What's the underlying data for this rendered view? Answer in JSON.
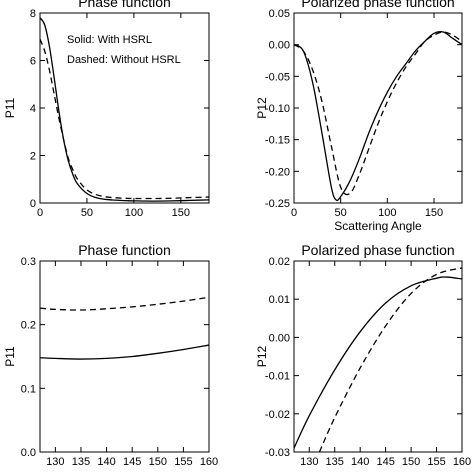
{
  "chart_data": [
    {
      "type": "line",
      "title": "Phase function",
      "xlabel": "",
      "ylabel": "P11",
      "xlim": [
        0,
        180
      ],
      "ylim": [
        0,
        8
      ],
      "xticks": [
        0,
        50,
        100,
        150
      ],
      "yticks": [
        0,
        2,
        4,
        6,
        8
      ],
      "legend": [
        "Solid: With HSRL",
        "Dashed: Without HSRL"
      ],
      "series": [
        {
          "name": "With HSRL",
          "style": "solid",
          "x": [
            0,
            5,
            10,
            15,
            20,
            25,
            30,
            35,
            40,
            50,
            60,
            70,
            80,
            90,
            100,
            120,
            140,
            160,
            180
          ],
          "y": [
            7.8,
            7.5,
            6.6,
            5.3,
            3.9,
            2.7,
            1.8,
            1.2,
            0.8,
            0.4,
            0.22,
            0.15,
            0.12,
            0.1,
            0.09,
            0.08,
            0.09,
            0.11,
            0.13
          ]
        },
        {
          "name": "Without HSRL",
          "style": "dashed",
          "x": [
            0,
            5,
            10,
            15,
            20,
            25,
            30,
            35,
            40,
            50,
            60,
            70,
            80,
            90,
            100,
            120,
            140,
            160,
            180
          ],
          "y": [
            6.9,
            6.4,
            5.6,
            4.6,
            3.6,
            2.7,
            1.9,
            1.4,
            1.0,
            0.55,
            0.35,
            0.26,
            0.22,
            0.2,
            0.19,
            0.19,
            0.2,
            0.23,
            0.25
          ]
        }
      ]
    },
    {
      "type": "line",
      "title": "Polarized phase function",
      "xlabel": "Scattering Angle",
      "ylabel": "P12",
      "xlim": [
        0,
        180
      ],
      "ylim": [
        -0.25,
        0.05
      ],
      "xticks": [
        0,
        50,
        100,
        150
      ],
      "yticks": [
        0.05,
        0.0,
        -0.05,
        -0.1,
        -0.15,
        -0.2,
        -0.25
      ],
      "ytick_labels": [
        "0.05",
        "0.00",
        "-0.05",
        "-0.10",
        "-0.15",
        "-0.20",
        "-0.25"
      ],
      "series": [
        {
          "name": "With HSRL",
          "style": "solid",
          "x": [
            0,
            10,
            20,
            30,
            40,
            45,
            50,
            60,
            70,
            80,
            90,
            100,
            110,
            120,
            130,
            140,
            150,
            160,
            170,
            180
          ],
          "y": [
            0.0,
            -0.01,
            -0.06,
            -0.14,
            -0.225,
            -0.245,
            -0.24,
            -0.215,
            -0.18,
            -0.14,
            -0.105,
            -0.075,
            -0.05,
            -0.03,
            -0.01,
            0.005,
            0.018,
            0.02,
            0.01,
            0.0
          ]
        },
        {
          "name": "Without HSRL",
          "style": "dashed",
          "x": [
            0,
            10,
            20,
            30,
            40,
            50,
            60,
            70,
            80,
            90,
            100,
            110,
            120,
            130,
            140,
            150,
            160,
            170,
            180
          ],
          "y": [
            0.0,
            -0.01,
            -0.04,
            -0.09,
            -0.16,
            -0.225,
            -0.235,
            -0.205,
            -0.165,
            -0.125,
            -0.09,
            -0.06,
            -0.035,
            -0.015,
            0.005,
            0.015,
            0.02,
            0.015,
            0.005
          ]
        }
      ]
    },
    {
      "type": "line",
      "title": "Phase function",
      "xlabel": "",
      "ylabel": "P11",
      "xlim": [
        127,
        160
      ],
      "ylim": [
        0,
        0.3
      ],
      "xticks": [
        130,
        135,
        140,
        145,
        150,
        155,
        160
      ],
      "yticks": [
        0.0,
        0.1,
        0.2,
        0.3
      ],
      "ytick_labels": [
        "0.0",
        "0.1",
        "0.2",
        "0.3"
      ],
      "series": [
        {
          "name": "With HSRL",
          "style": "solid",
          "x": [
            127,
            130,
            135,
            140,
            145,
            150,
            155,
            160
          ],
          "y": [
            0.148,
            0.147,
            0.146,
            0.147,
            0.15,
            0.155,
            0.161,
            0.168
          ]
        },
        {
          "name": "Without HSRL",
          "style": "dashed",
          "x": [
            127,
            130,
            135,
            140,
            145,
            150,
            155,
            160
          ],
          "y": [
            0.226,
            0.224,
            0.223,
            0.225,
            0.228,
            0.232,
            0.237,
            0.243
          ]
        }
      ]
    },
    {
      "type": "line",
      "title": "Polarized phase function",
      "xlabel": "",
      "ylabel": "P12",
      "xlim": [
        127,
        160
      ],
      "ylim": [
        -0.03,
        0.02
      ],
      "xticks": [
        130,
        135,
        140,
        145,
        150,
        155,
        160
      ],
      "yticks": [
        0.02,
        0.01,
        0.0,
        -0.01,
        -0.02,
        -0.03
      ],
      "ytick_labels": [
        "0.02",
        "0.01",
        "0.00",
        "-0.01",
        "-0.02",
        "-0.03"
      ],
      "series": [
        {
          "name": "With HSRL",
          "style": "solid",
          "x": [
            127,
            130,
            135,
            140,
            145,
            150,
            155,
            157,
            160
          ],
          "y": [
            -0.029,
            -0.0205,
            -0.0085,
            0.0015,
            0.009,
            0.0135,
            0.0155,
            0.0158,
            0.0153
          ]
        },
        {
          "name": "Without HSRL",
          "style": "dashed",
          "x": [
            132,
            135,
            140,
            145,
            150,
            155,
            160
          ],
          "y": [
            -0.03,
            -0.021,
            -0.008,
            0.003,
            0.0115,
            0.0165,
            0.0182
          ]
        }
      ]
    }
  ]
}
